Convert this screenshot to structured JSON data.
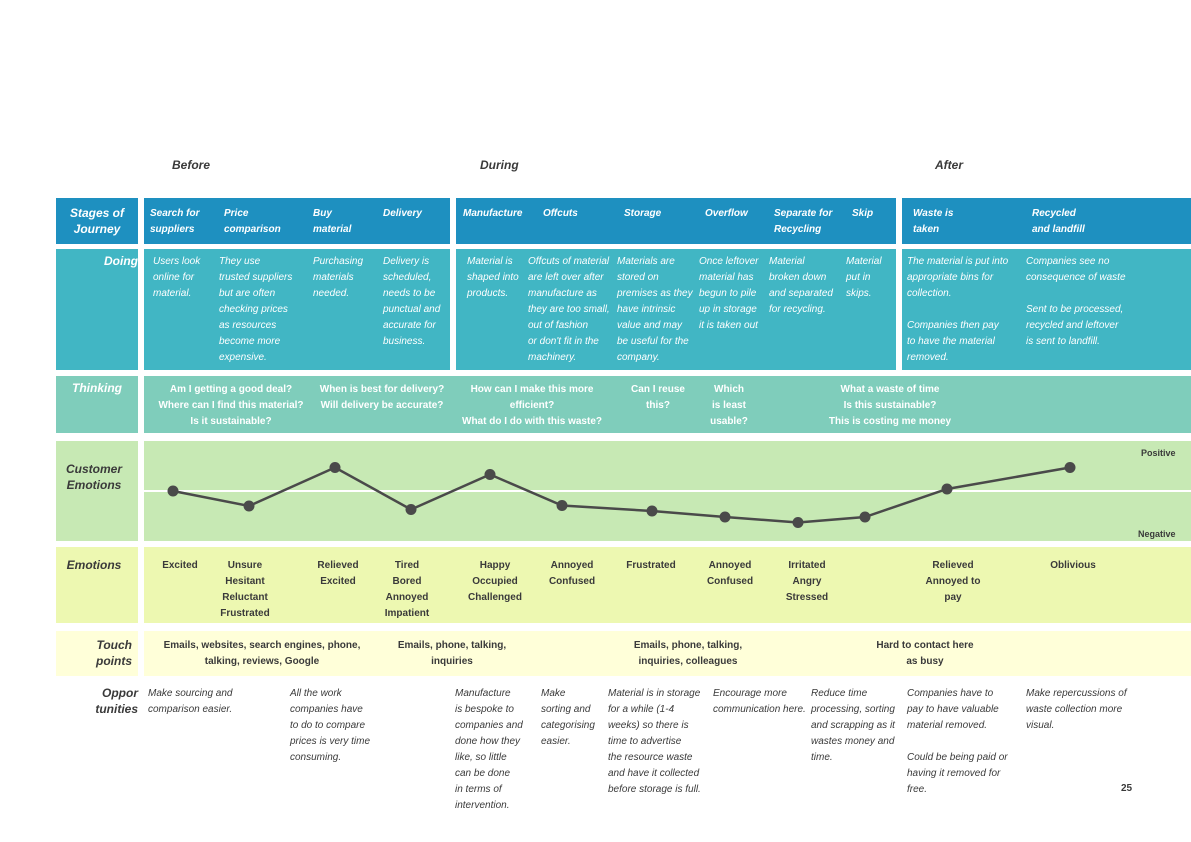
{
  "phases": {
    "before": "Before",
    "during": "During",
    "after": "After"
  },
  "row_labels": {
    "stages": "Stages of\nJourney",
    "doing": "Doing",
    "thinking": "Thinking",
    "customer_emotions": "Customer\nEmotions",
    "emotions": "Emotions",
    "touchpoints": "Touch\npoints",
    "opportunities": "Oppor\ntunities"
  },
  "stages": [
    "Search for\nsuppliers",
    "Price\ncomparison",
    "Buy\nmaterial",
    "Delivery",
    "Manufacture",
    "Offcuts",
    "Storage",
    "Overflow",
    "Separate for\nRecycling",
    "Skip",
    "Waste is\ntaken",
    "Recycled\nand landfill"
  ],
  "doing": [
    "Users look\nonline for\nmaterial.",
    "They use\ntrusted suppliers\nbut are often\nchecking prices\nas resources\nbecome more\nexpensive.",
    "Purchasing\nmaterials\nneeded.",
    "Delivery is\nscheduled,\nneeds to be\npunctual and\naccurate for\nbusiness.",
    "Material is\nshaped into\nproducts.",
    "Offcuts of material\nare left over after\nmanufacture as\nthey are too small,\nout of fashion\nor don't fit in the\nmachinery.",
    "Materials are\nstored on\npremises as they\nhave intrinsic\nvalue and may\nbe useful for the\ncompany.",
    "Once leftover\nmaterial has\nbegun to pile\nup in storage\nit is taken out",
    "Material\nbroken down\nand separated\nfor recycling.",
    "Material\nput in\nskips.",
    "The material is put into\nappropriate bins for\ncollection.\n\nCompanies then pay\nto have the material\nremoved.",
    "Companies see no\nconsequence of waste\n\nSent to be processed,\nrecycled and leftover\nis sent to landfill."
  ],
  "thinking": [
    "Am I getting a good deal?\nWhere can I find this material?\nIs it sustainable?",
    "When is best for delivery?\nWill delivery be accurate?",
    "How can I make this more\nefficient?\nWhat do I do with this waste?",
    "Can I reuse\nthis?",
    "Which\nis least\nusable?",
    "What a waste of time\nIs this sustainable?\nThis is costing me money"
  ],
  "chart_data": {
    "type": "line",
    "title": "",
    "ylabel_top": "Positive",
    "ylabel_bottom": "Negative",
    "ylim": [
      -1,
      1
    ],
    "baseline": 0,
    "series": [
      {
        "values": [
          0.0,
          -0.3,
          0.47,
          -0.37,
          0.33,
          -0.29,
          -0.4,
          -0.52,
          -0.63,
          -0.52,
          0.04,
          0.47
        ]
      }
    ],
    "marker_color": "#4a4a4a",
    "line_color": "#4a4a4a"
  },
  "emotions": [
    "Excited",
    "Unsure\nHesitant\nReluctant\nFrustrated",
    "Relieved\nExcited",
    "Tired\nBored\nAnnoyed\nImpatient",
    "Happy\nOccupied\nChallenged",
    "Annoyed\nConfused",
    "Frustrated",
    "Annoyed\nConfused",
    "Irritated\nAngry\nStressed",
    "Relieved\nAnnoyed to\npay",
    "Oblivious"
  ],
  "touchpoints": [
    "Emails, websites, search engines, phone,\ntalking, reviews, Google",
    "Emails, phone, talking,\ninquiries",
    "Emails, phone, talking,\ninquiries, colleagues",
    "Hard to contact here\nas busy"
  ],
  "opportunities": [
    "Make sourcing and\ncomparison easier.",
    "All the work\ncompanies have\nto do to compare\nprices is very time\nconsuming.",
    "Manufacture\nis bespoke to\ncompanies and\ndone how they\nlike, so little\ncan be done\nin terms of\nintervention.",
    "Make\nsorting and\ncategorising\neasier.",
    "Material is in storage\nfor a while (1-4\nweeks) so there is\ntime to advertise\nthe resource waste\nand have it collected\nbefore storage is full.",
    "Encourage more\ncommunication here.",
    "Reduce time\nprocessing, sorting\nand scrapping as it\nwastes money and\ntime.",
    "Companies have to\npay to have valuable\nmaterial removed.\n\nCould be being paid or\nhaving it removed for\nfree.",
    "Make repercussions of\nwaste collection more\nvisual."
  ],
  "page_number": "25"
}
